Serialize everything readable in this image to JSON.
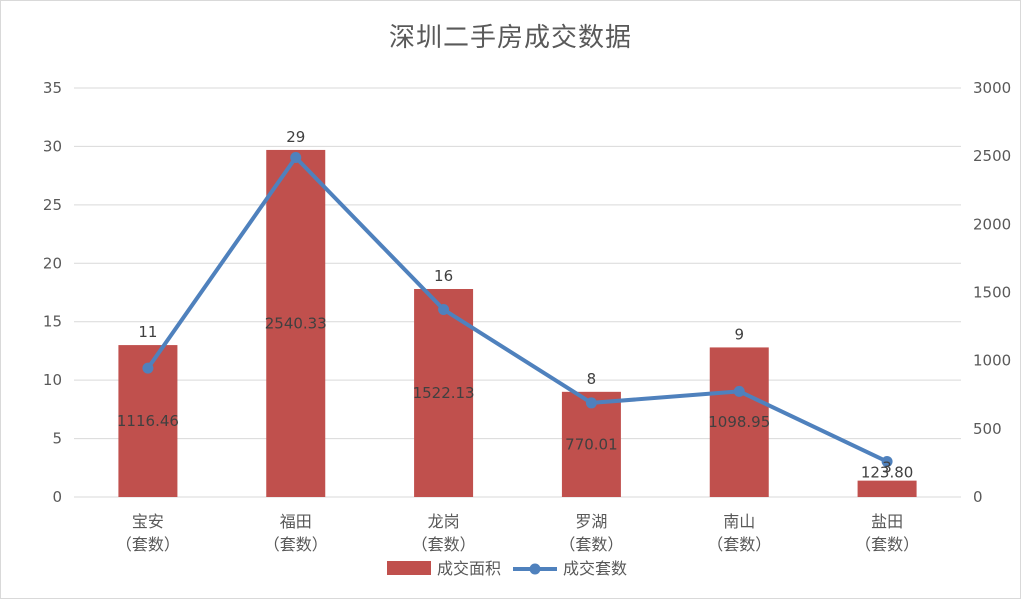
{
  "chart_data": {
    "type": "bar",
    "title": "深圳二手房成交数据",
    "categories": [
      [
        "宝安",
        "（套数）"
      ],
      [
        "福田",
        "（套数）"
      ],
      [
        "龙岗",
        "（套数）"
      ],
      [
        "罗湖",
        "（套数）"
      ],
      [
        "南山",
        "（套数）"
      ],
      [
        "盐田",
        "（套数）"
      ]
    ],
    "series": [
      {
        "name": "成交面积",
        "type": "bar",
        "axis": "left",
        "color": "#c0504d",
        "values": [
          13,
          29.7,
          17.8,
          9,
          12.8,
          1.4
        ],
        "data_labels": [
          "1116.46",
          "2540.33",
          "1522.13",
          "770.01",
          "1098.95",
          "123.80"
        ]
      },
      {
        "name": "成交套数",
        "type": "line",
        "axis": "right",
        "color": "#4f81bd",
        "values": [
          945,
          2490,
          1375,
          690,
          775,
          260
        ],
        "data_labels": [
          "11",
          "29",
          "16",
          "8",
          "9",
          "3"
        ]
      }
    ],
    "y_left": {
      "min": 0,
      "max": 35,
      "ticks": [
        "0",
        "5",
        "10",
        "15",
        "20",
        "25",
        "30",
        "35"
      ]
    },
    "y_right": {
      "min": 0,
      "max": 3000,
      "ticks": [
        "0",
        "500",
        "1000",
        "1500",
        "2000",
        "2500",
        "3000"
      ]
    },
    "grid": true,
    "legend_position": "bottom"
  }
}
